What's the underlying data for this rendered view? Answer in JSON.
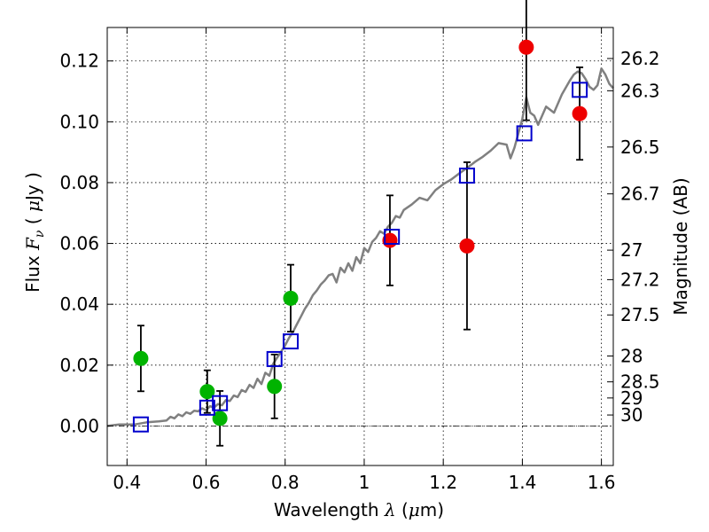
{
  "chart_data": {
    "type": "scatter",
    "xlabel": {
      "prefix": "Wavelength",
      "symbol": "λ",
      "unit_open": "(",
      "unit_mu": "μ",
      "unit_rest": "m)"
    },
    "ylabel": {
      "prefix": "Flux",
      "symbol": "F",
      "sub": "ν",
      "unit_open": "(",
      "unit_mu": "μ",
      "unit_rest": "Jy )"
    },
    "y2label": "Magnitude (AB)",
    "xlim": [
      0.35,
      1.63
    ],
    "ylim": [
      -0.013,
      0.131
    ],
    "grid": true,
    "x_ticks": [
      0.4,
      0.6,
      0.8,
      1.0,
      1.2,
      1.4,
      1.6
    ],
    "x_tick_labels": [
      "0.4",
      "0.6",
      "0.8",
      "1",
      "1.2",
      "1.4",
      "1.6"
    ],
    "y_ticks": [
      0.0,
      0.02,
      0.04,
      0.06,
      0.08,
      0.1,
      0.12
    ],
    "y_tick_labels": [
      "0.00",
      "0.02",
      "0.04",
      "0.06",
      "0.08",
      "0.10",
      "0.12"
    ],
    "y2_ticks": [
      {
        "label": "26.2",
        "flux": 0.1208
      },
      {
        "label": "26.3",
        "flux": 0.1102
      },
      {
        "label": "26.5",
        "flux": 0.0917
      },
      {
        "label": "26.7",
        "flux": 0.0763
      },
      {
        "label": "27",
        "flux": 0.0578
      },
      {
        "label": "27.2",
        "flux": 0.0481
      },
      {
        "label": "27.5",
        "flux": 0.0365
      },
      {
        "label": "28",
        "flux": 0.023
      },
      {
        "label": "28.5",
        "flux": 0.0145
      },
      {
        "label": "29",
        "flux": 0.0092
      },
      {
        "label": "30",
        "flux": 0.0036
      }
    ],
    "reference_line_y": 0.0,
    "colors": {
      "model": "#808080",
      "green": "#00b300",
      "red": "#ee0000",
      "blue": "#0000cc",
      "error": "#000000"
    },
    "series": [
      {
        "kind": "model_spectrum",
        "points": [
          [
            0.35,
            0.0
          ],
          [
            0.38,
            0.0005
          ],
          [
            0.42,
            0.0005
          ],
          [
            0.45,
            0.0012
          ],
          [
            0.48,
            0.0015
          ],
          [
            0.5,
            0.0018
          ],
          [
            0.51,
            0.003
          ],
          [
            0.52,
            0.0025
          ],
          [
            0.53,
            0.0038
          ],
          [
            0.54,
            0.0032
          ],
          [
            0.55,
            0.0045
          ],
          [
            0.56,
            0.004
          ],
          [
            0.57,
            0.005
          ],
          [
            0.58,
            0.0048
          ],
          [
            0.59,
            0.0058
          ],
          [
            0.6,
            0.0052
          ],
          [
            0.61,
            0.0065
          ],
          [
            0.62,
            0.006
          ],
          [
            0.63,
            0.0072
          ],
          [
            0.64,
            0.0068
          ],
          [
            0.65,
            0.0085
          ],
          [
            0.66,
            0.0082
          ],
          [
            0.67,
            0.01
          ],
          [
            0.68,
            0.0095
          ],
          [
            0.69,
            0.0118
          ],
          [
            0.7,
            0.0112
          ],
          [
            0.71,
            0.0135
          ],
          [
            0.72,
            0.0125
          ],
          [
            0.73,
            0.0155
          ],
          [
            0.74,
            0.0138
          ],
          [
            0.75,
            0.0175
          ],
          [
            0.76,
            0.0165
          ],
          [
            0.77,
            0.0205
          ],
          [
            0.78,
            0.0225
          ],
          [
            0.79,
            0.0245
          ],
          [
            0.8,
            0.0265
          ],
          [
            0.81,
            0.029
          ],
          [
            0.82,
            0.031
          ],
          [
            0.83,
            0.0335
          ],
          [
            0.84,
            0.036
          ],
          [
            0.85,
            0.0385
          ],
          [
            0.86,
            0.0405
          ],
          [
            0.87,
            0.043
          ],
          [
            0.88,
            0.0445
          ],
          [
            0.89,
            0.0465
          ],
          [
            0.9,
            0.0478
          ],
          [
            0.91,
            0.0495
          ],
          [
            0.92,
            0.05
          ],
          [
            0.93,
            0.0472
          ],
          [
            0.94,
            0.052
          ],
          [
            0.95,
            0.0505
          ],
          [
            0.96,
            0.0535
          ],
          [
            0.97,
            0.051
          ],
          [
            0.98,
            0.0555
          ],
          [
            0.99,
            0.0535
          ],
          [
            1.0,
            0.0585
          ],
          [
            1.01,
            0.0572
          ],
          [
            1.02,
            0.0605
          ],
          [
            1.03,
            0.0618
          ],
          [
            1.04,
            0.064
          ],
          [
            1.05,
            0.0632
          ],
          [
            1.06,
            0.0655
          ],
          [
            1.07,
            0.0668
          ],
          [
            1.08,
            0.069
          ],
          [
            1.09,
            0.0685
          ],
          [
            1.1,
            0.071
          ],
          [
            1.12,
            0.0728
          ],
          [
            1.14,
            0.075
          ],
          [
            1.16,
            0.0742
          ],
          [
            1.18,
            0.0775
          ],
          [
            1.2,
            0.0795
          ],
          [
            1.22,
            0.081
          ],
          [
            1.24,
            0.083
          ],
          [
            1.26,
            0.0848
          ],
          [
            1.28,
            0.0868
          ],
          [
            1.3,
            0.0885
          ],
          [
            1.32,
            0.0905
          ],
          [
            1.34,
            0.093
          ],
          [
            1.36,
            0.0925
          ],
          [
            1.37,
            0.088
          ],
          [
            1.38,
            0.0915
          ],
          [
            1.4,
            0.101
          ],
          [
            1.41,
            0.108
          ],
          [
            1.42,
            0.103
          ],
          [
            1.43,
            0.102
          ],
          [
            1.44,
            0.099
          ],
          [
            1.45,
            0.102
          ],
          [
            1.46,
            0.105
          ],
          [
            1.48,
            0.103
          ],
          [
            1.5,
            0.109
          ],
          [
            1.52,
            0.1135
          ],
          [
            1.53,
            0.1155
          ],
          [
            1.54,
            0.1165
          ],
          [
            1.55,
            0.116
          ],
          [
            1.56,
            0.114
          ],
          [
            1.57,
            0.1115
          ],
          [
            1.58,
            0.1105
          ],
          [
            1.59,
            0.112
          ],
          [
            1.6,
            0.1175
          ],
          [
            1.61,
            0.1155
          ],
          [
            1.62,
            0.1125
          ],
          [
            1.63,
            0.111
          ]
        ]
      },
      {
        "kind": "green_points",
        "points": [
          {
            "x": 0.435,
            "y": 0.0222,
            "err": 0.0108
          },
          {
            "x": 0.603,
            "y": 0.0113,
            "err": 0.007
          },
          {
            "x": 0.635,
            "y": 0.0025,
            "err": 0.009
          },
          {
            "x": 0.773,
            "y": 0.013,
            "err": 0.0105
          },
          {
            "x": 0.814,
            "y": 0.042,
            "err": 0.011
          }
        ]
      },
      {
        "kind": "red_points",
        "points": [
          {
            "x": 1.065,
            "y": 0.061,
            "err": 0.0148
          },
          {
            "x": 1.26,
            "y": 0.0592,
            "err": 0.0275
          },
          {
            "x": 1.41,
            "y": 0.1245,
            "err": 0.024
          },
          {
            "x": 1.545,
            "y": 0.1027,
            "err": 0.0152
          }
        ]
      },
      {
        "kind": "model_squares",
        "points": [
          {
            "x": 0.435,
            "y": 0.0005
          },
          {
            "x": 0.603,
            "y": 0.006
          },
          {
            "x": 0.635,
            "y": 0.0075
          },
          {
            "x": 0.773,
            "y": 0.022
          },
          {
            "x": 0.814,
            "y": 0.0278
          },
          {
            "x": 1.07,
            "y": 0.0622
          },
          {
            "x": 1.26,
            "y": 0.0823
          },
          {
            "x": 1.405,
            "y": 0.0962
          },
          {
            "x": 1.545,
            "y": 0.1105
          }
        ]
      }
    ]
  }
}
